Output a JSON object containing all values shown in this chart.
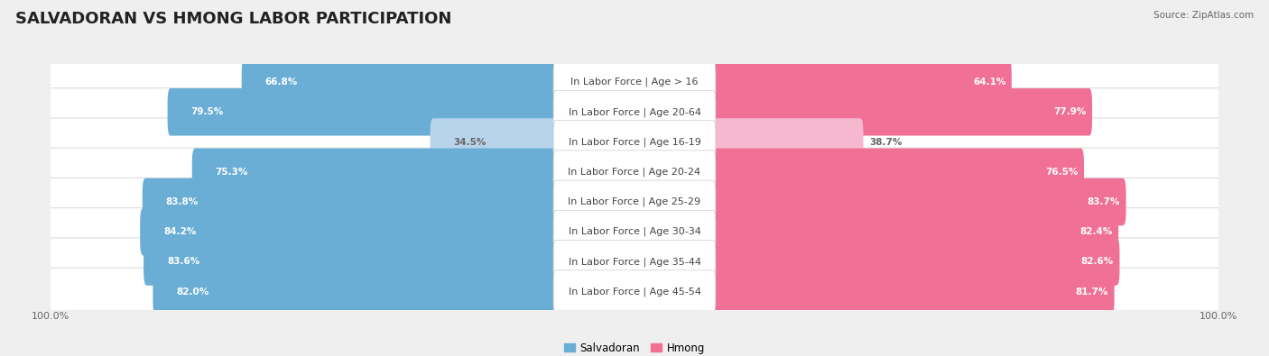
{
  "title": "SALVADORAN VS HMONG LABOR PARTICIPATION",
  "source": "Source: ZipAtlas.com",
  "categories": [
    "In Labor Force | Age > 16",
    "In Labor Force | Age 20-64",
    "In Labor Force | Age 16-19",
    "In Labor Force | Age 20-24",
    "In Labor Force | Age 25-29",
    "In Labor Force | Age 30-34",
    "In Labor Force | Age 35-44",
    "In Labor Force | Age 45-54"
  ],
  "salvadoran": [
    66.8,
    79.5,
    34.5,
    75.3,
    83.8,
    84.2,
    83.6,
    82.0
  ],
  "hmong": [
    64.1,
    77.9,
    38.7,
    76.5,
    83.7,
    82.4,
    82.6,
    81.7
  ],
  "salvadoran_color": "#6aaed6",
  "salvadoran_color_light": "#b8d4ea",
  "hmong_color": "#f07096",
  "hmong_color_light": "#f5b8ce",
  "bg_color": "#efefef",
  "row_bg_white": "#ffffff",
  "row_bg_light": "#f5f5f5",
  "title_fontsize": 13,
  "label_fontsize": 8,
  "value_fontsize": 7.5,
  "legend_fontsize": 8.5,
  "axis_label_fontsize": 8
}
